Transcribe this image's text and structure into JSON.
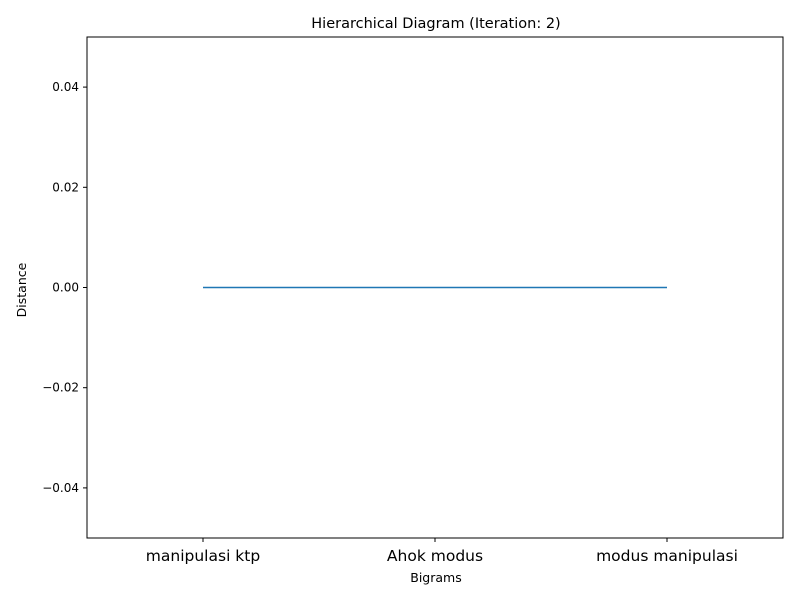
{
  "chart_data": {
    "type": "line",
    "title": "Hierarchical Diagram (Iteration: 2)",
    "xlabel": "Bigrams",
    "ylabel": "Distance",
    "categories": [
      "manipulasi ktp",
      "Ahok modus",
      "modus manipulasi"
    ],
    "ylim": [
      -0.05,
      0.05
    ],
    "yticks": [
      0.04,
      0.02,
      0.0,
      -0.02,
      -0.04
    ],
    "ytick_labels": [
      "0.04",
      "0.02",
      "0.00",
      "−0.02",
      "−0.04"
    ],
    "segments": [
      {
        "x": [
          0,
          1
        ],
        "y": [
          0.0,
          0.0
        ]
      },
      {
        "x": [
          1,
          2
        ],
        "y": [
          0.0,
          0.0
        ]
      }
    ],
    "grid": false,
    "line_color": "#1f77b4"
  }
}
